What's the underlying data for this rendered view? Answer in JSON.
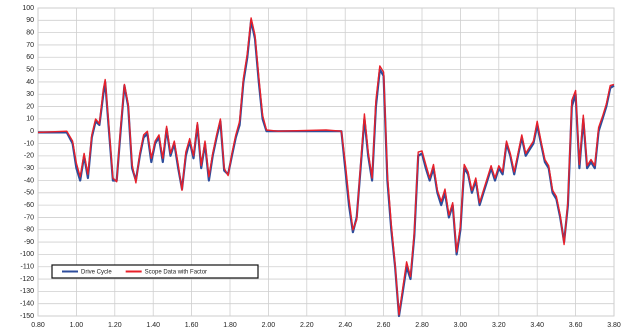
{
  "chart_data": {
    "type": "line",
    "x": [
      0.8,
      0.95,
      0.98,
      1.0,
      1.02,
      1.04,
      1.06,
      1.08,
      1.1,
      1.12,
      1.14,
      1.15,
      1.17,
      1.19,
      1.21,
      1.23,
      1.25,
      1.27,
      1.29,
      1.31,
      1.33,
      1.35,
      1.37,
      1.39,
      1.41,
      1.43,
      1.45,
      1.47,
      1.49,
      1.51,
      1.53,
      1.55,
      1.57,
      1.59,
      1.61,
      1.63,
      1.65,
      1.67,
      1.69,
      1.71,
      1.73,
      1.75,
      1.77,
      1.79,
      1.81,
      1.83,
      1.85,
      1.87,
      1.89,
      1.91,
      1.93,
      1.95,
      1.97,
      1.99,
      2.05,
      2.3,
      2.38,
      2.4,
      2.42,
      2.44,
      2.46,
      2.48,
      2.5,
      2.52,
      2.54,
      2.56,
      2.58,
      2.6,
      2.62,
      2.64,
      2.66,
      2.68,
      2.7,
      2.72,
      2.74,
      2.76,
      2.78,
      2.8,
      2.82,
      2.84,
      2.86,
      2.88,
      2.9,
      2.92,
      2.94,
      2.96,
      2.98,
      3.0,
      3.02,
      3.04,
      3.06,
      3.08,
      3.1,
      3.12,
      3.14,
      3.16,
      3.18,
      3.2,
      3.22,
      3.24,
      3.26,
      3.28,
      3.3,
      3.32,
      3.34,
      3.36,
      3.38,
      3.4,
      3.42,
      3.44,
      3.46,
      3.48,
      3.5,
      3.52,
      3.54,
      3.56,
      3.58,
      3.6,
      3.62,
      3.64,
      3.66,
      3.68,
      3.7,
      3.72,
      3.74,
      3.76,
      3.78,
      3.8
    ],
    "series": [
      {
        "name": "Drive Cycle",
        "color": "#2e4d9c",
        "values": [
          -1,
          -1,
          -10,
          -30,
          -40,
          -20,
          -38,
          -5,
          8,
          5,
          30,
          40,
          0,
          -40,
          -40,
          0,
          37,
          20,
          -30,
          -40,
          -20,
          -5,
          -2,
          -25,
          -10,
          -5,
          -25,
          2,
          -20,
          -10,
          -30,
          -47,
          -20,
          -8,
          -22,
          5,
          -30,
          -10,
          -40,
          -20,
          -5,
          8,
          -32,
          -35,
          -20,
          -5,
          5,
          40,
          60,
          90,
          75,
          40,
          10,
          0,
          0,
          0,
          0,
          -30,
          -60,
          -82,
          -70,
          -30,
          10,
          -20,
          -40,
          20,
          50,
          45,
          -40,
          -80,
          -110,
          -150,
          -130,
          -110,
          -120,
          -85,
          -20,
          -18,
          -30,
          -40,
          -30,
          -50,
          -60,
          -50,
          -70,
          -60,
          -100,
          -80,
          -30,
          -35,
          -50,
          -40,
          -60,
          -50,
          -40,
          -30,
          -40,
          -30,
          -35,
          -10,
          -20,
          -35,
          -20,
          -5,
          -20,
          -15,
          -10,
          5,
          -10,
          -25,
          -30,
          -50,
          -55,
          -70,
          -90,
          -60,
          20,
          30,
          -30,
          10,
          -30,
          -25,
          -30,
          0,
          10,
          20,
          35,
          37
        ]
      },
      {
        "name": "Scope Data with Factor",
        "color": "#e8202a",
        "values": [
          -1,
          0,
          -8,
          -26,
          -37,
          -18,
          -35,
          -3,
          10,
          6,
          34,
          42,
          3,
          -38,
          -41,
          3,
          38,
          22,
          -27,
          -42,
          -18,
          -3,
          0,
          -22,
          -8,
          -3,
          -22,
          4,
          -18,
          -8,
          -27,
          -48,
          -17,
          -6,
          -20,
          7,
          -28,
          -8,
          -37,
          -18,
          -3,
          10,
          -30,
          -36,
          -18,
          -3,
          8,
          43,
          63,
          92,
          78,
          44,
          13,
          1,
          0,
          1,
          0,
          -25,
          -55,
          -80,
          -72,
          -27,
          14,
          -17,
          -38,
          25,
          53,
          48,
          -35,
          -76,
          -108,
          -149,
          -127,
          -106,
          -118,
          -82,
          -17,
          -16,
          -27,
          -38,
          -27,
          -48,
          -57,
          -47,
          -68,
          -58,
          -98,
          -77,
          -27,
          -33,
          -48,
          -38,
          -58,
          -48,
          -38,
          -28,
          -38,
          -28,
          -33,
          -8,
          -18,
          -33,
          -18,
          -3,
          -18,
          -13,
          -8,
          8,
          -8,
          -23,
          -28,
          -48,
          -53,
          -68,
          -92,
          -57,
          25,
          33,
          -27,
          13,
          -28,
          -23,
          -28,
          3,
          12,
          22,
          37,
          38
        ]
      }
    ],
    "xlim": [
      0.8,
      3.8
    ],
    "xticks": [
      {
        "value": 0.8,
        "label": "0.80"
      },
      {
        "value": 1.0,
        "label": "1.00"
      },
      {
        "value": 1.2,
        "label": "1.20"
      },
      {
        "value": 1.4,
        "label": "1.40"
      },
      {
        "value": 1.6,
        "label": "1.60"
      },
      {
        "value": 1.8,
        "label": "1.80"
      },
      {
        "value": 2.0,
        "label": "2.00"
      },
      {
        "value": 2.2,
        "label": "2.20"
      },
      {
        "value": 2.4,
        "label": "2.40"
      },
      {
        "value": 2.6,
        "label": "2.60"
      },
      {
        "value": 2.8,
        "label": "2.80"
      },
      {
        "value": 3.0,
        "label": "3.00"
      },
      {
        "value": 3.2,
        "label": "3.20"
      },
      {
        "value": 3.4,
        "label": "3.40"
      },
      {
        "value": 3.6,
        "label": "3.60"
      },
      {
        "value": 3.8,
        "label": "3.80"
      }
    ],
    "ylim": [
      -150,
      100
    ],
    "yticks": [
      -150,
      -140,
      -130,
      -120,
      -110,
      -100,
      -90,
      -80,
      -70,
      -60,
      -50,
      -40,
      -30,
      -20,
      -10,
      0,
      10,
      20,
      30,
      40,
      50,
      60,
      70,
      80,
      90,
      100
    ],
    "grid": true,
    "legend": "lower left"
  }
}
